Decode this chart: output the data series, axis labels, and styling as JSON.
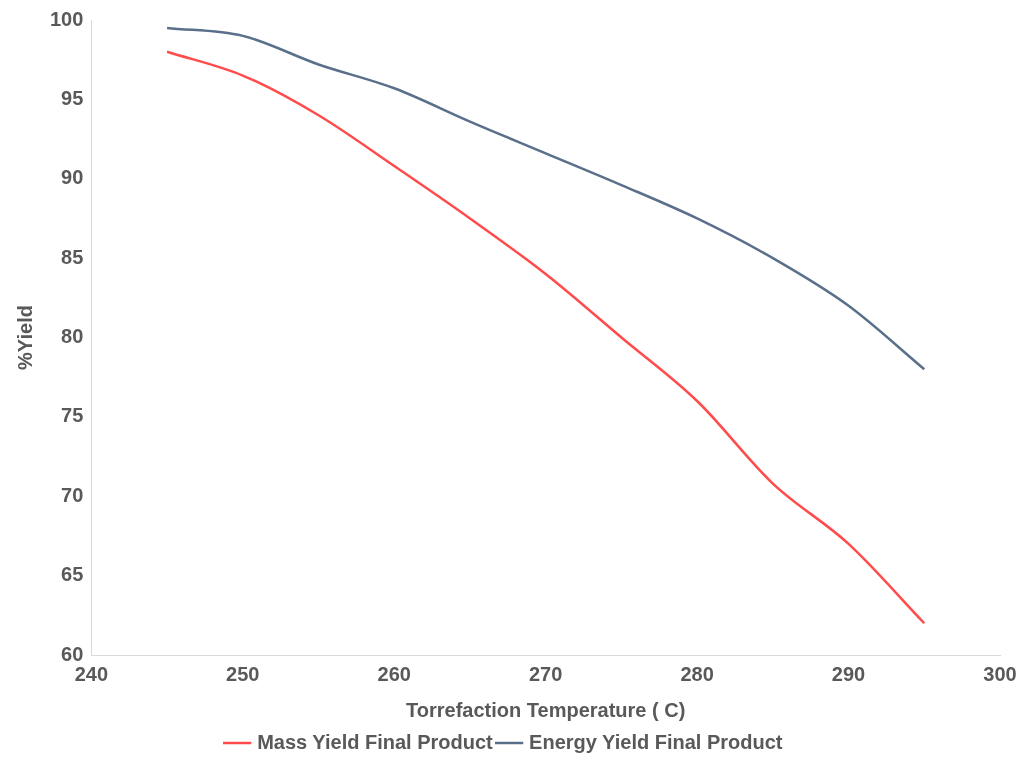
{
  "chart_data": {
    "type": "line",
    "xlabel": "Torrefaction Temperature ( C)",
    "ylabel": "%Yield",
    "x": [
      245,
      250,
      255,
      260,
      265,
      270,
      275,
      280,
      285,
      290,
      295
    ],
    "series": [
      {
        "name": "Mass Yield Final Product",
        "color": "#ff4b4b",
        "values": [
          98,
          96.5,
          94,
          90.8,
          87.5,
          84,
          80,
          76,
          70.8,
          67,
          62
        ]
      },
      {
        "name": "Energy Yield Final Product",
        "color": "#5a708a",
        "values": [
          99.5,
          99,
          97.2,
          95.7,
          93.6,
          91.6,
          89.6,
          87.5,
          85,
          82,
          78
        ]
      }
    ],
    "xlim": [
      240,
      300
    ],
    "xticks": [
      240,
      250,
      260,
      270,
      280,
      290,
      300
    ],
    "ylim": [
      60,
      100
    ],
    "yticks": [
      60,
      65,
      70,
      75,
      80,
      85,
      90,
      95,
      100
    ],
    "grid": false,
    "legend": "bottom",
    "marker": "none",
    "line_style": "solid"
  }
}
